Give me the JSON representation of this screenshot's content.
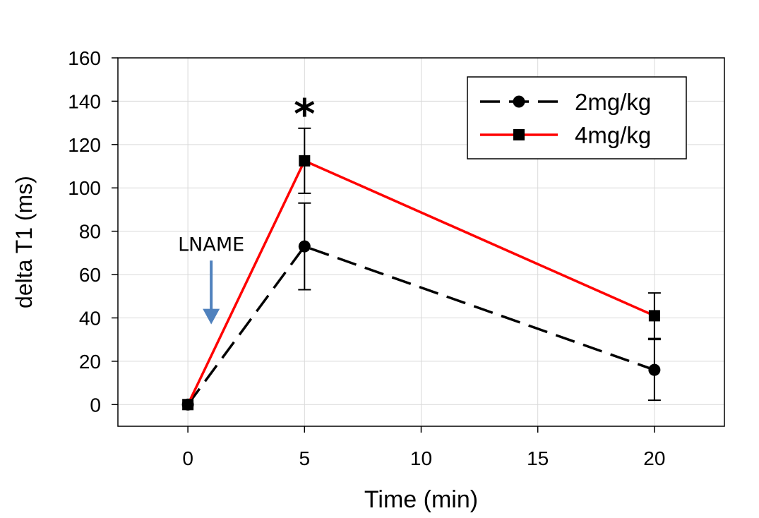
{
  "chart_data": {
    "type": "line",
    "title": "",
    "xlabel": "Time (min)",
    "ylabel": "delta T1 (ms)",
    "xlim": [
      -3,
      23
    ],
    "ylim": [
      -10,
      160
    ],
    "xticks": [
      0,
      5,
      10,
      15,
      20
    ],
    "yticks": [
      0,
      20,
      40,
      60,
      80,
      100,
      120,
      140,
      160
    ],
    "grid": true,
    "legend_position": "top-right",
    "series": [
      {
        "name": "2mg/kg",
        "color": "#000000",
        "line_style": "dashed",
        "marker": "circle",
        "points": [
          {
            "x": 0,
            "y": 0,
            "err": 0
          },
          {
            "x": 5,
            "y": 73,
            "err": 20
          },
          {
            "x": 20,
            "y": 16,
            "err": 14
          }
        ]
      },
      {
        "name": "4mg/kg",
        "color": "#ff0000",
        "line_style": "solid",
        "marker": "square",
        "points": [
          {
            "x": 0,
            "y": 0,
            "err": 0
          },
          {
            "x": 5,
            "y": 112.5,
            "err": 15
          },
          {
            "x": 20,
            "y": 41,
            "err": 10.5
          }
        ]
      }
    ],
    "annotations": [
      {
        "text": "*",
        "x": 5,
        "y": 136
      },
      {
        "text": "LNAME",
        "x": 1,
        "y": 71,
        "arrow_to": [
          1,
          37
        ],
        "arrow_color": "#4f81bd"
      }
    ]
  }
}
